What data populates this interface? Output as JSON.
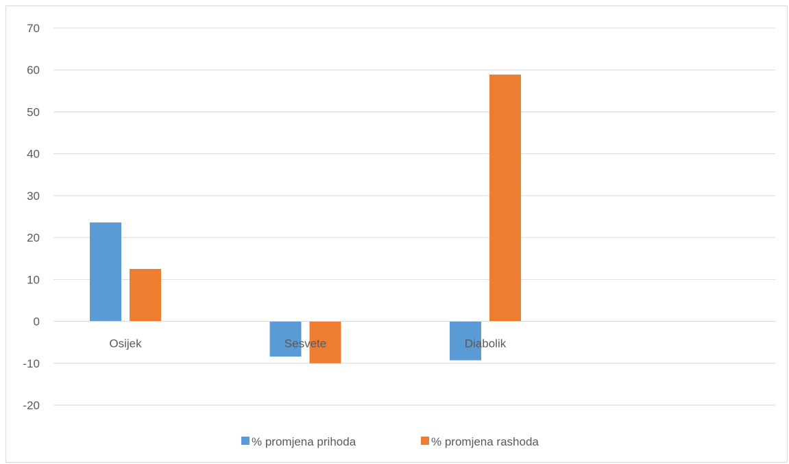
{
  "chart_data": {
    "type": "bar",
    "categories": [
      "Osijek",
      "Sesvete",
      "Diabolik"
    ],
    "series": [
      {
        "name": "% promjena prihoda",
        "color": "#5b9bd5",
        "values": [
          23.6,
          -8.4,
          -9.3
        ]
      },
      {
        "name": "% promjena rashoda",
        "color": "#ed7d31",
        "values": [
          12.5,
          -10.0,
          58.9
        ]
      }
    ],
    "ylim": [
      -20,
      70
    ],
    "yticks": [
      -20,
      -10,
      0,
      10,
      20,
      30,
      40,
      50,
      60,
      70
    ],
    "grid": true,
    "legend": "bottom"
  }
}
